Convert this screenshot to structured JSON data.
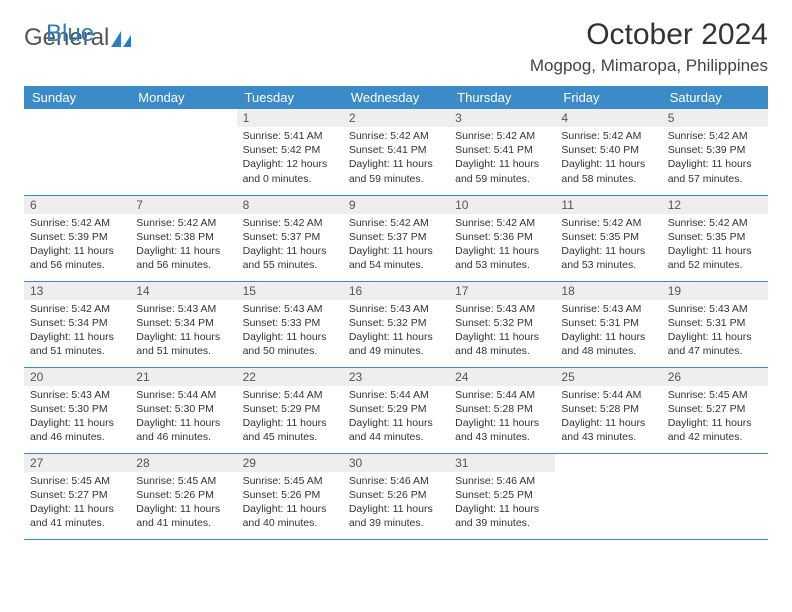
{
  "brand": {
    "part1": "General",
    "part2": "Blue"
  },
  "title": "October 2024",
  "location": "Mogpog, Mimaropa, Philippines",
  "colors": {
    "header_bg": "#3b8bc9",
    "header_text": "#ffffff",
    "daynum_bg": "#eeeeee",
    "border": "#3b8bc9",
    "brand_gray": "#555555",
    "brand_blue": "#2f7bbf"
  },
  "weekdays": [
    "Sunday",
    "Monday",
    "Tuesday",
    "Wednesday",
    "Thursday",
    "Friday",
    "Saturday"
  ],
  "weeks": [
    [
      null,
      null,
      {
        "num": "1",
        "sunrise": "5:41 AM",
        "sunset": "5:42 PM",
        "daylight": "12 hours and 0 minutes."
      },
      {
        "num": "2",
        "sunrise": "5:42 AM",
        "sunset": "5:41 PM",
        "daylight": "11 hours and 59 minutes."
      },
      {
        "num": "3",
        "sunrise": "5:42 AM",
        "sunset": "5:41 PM",
        "daylight": "11 hours and 59 minutes."
      },
      {
        "num": "4",
        "sunrise": "5:42 AM",
        "sunset": "5:40 PM",
        "daylight": "11 hours and 58 minutes."
      },
      {
        "num": "5",
        "sunrise": "5:42 AM",
        "sunset": "5:39 PM",
        "daylight": "11 hours and 57 minutes."
      }
    ],
    [
      {
        "num": "6",
        "sunrise": "5:42 AM",
        "sunset": "5:39 PM",
        "daylight": "11 hours and 56 minutes."
      },
      {
        "num": "7",
        "sunrise": "5:42 AM",
        "sunset": "5:38 PM",
        "daylight": "11 hours and 56 minutes."
      },
      {
        "num": "8",
        "sunrise": "5:42 AM",
        "sunset": "5:37 PM",
        "daylight": "11 hours and 55 minutes."
      },
      {
        "num": "9",
        "sunrise": "5:42 AM",
        "sunset": "5:37 PM",
        "daylight": "11 hours and 54 minutes."
      },
      {
        "num": "10",
        "sunrise": "5:42 AM",
        "sunset": "5:36 PM",
        "daylight": "11 hours and 53 minutes."
      },
      {
        "num": "11",
        "sunrise": "5:42 AM",
        "sunset": "5:35 PM",
        "daylight": "11 hours and 53 minutes."
      },
      {
        "num": "12",
        "sunrise": "5:42 AM",
        "sunset": "5:35 PM",
        "daylight": "11 hours and 52 minutes."
      }
    ],
    [
      {
        "num": "13",
        "sunrise": "5:42 AM",
        "sunset": "5:34 PM",
        "daylight": "11 hours and 51 minutes."
      },
      {
        "num": "14",
        "sunrise": "5:43 AM",
        "sunset": "5:34 PM",
        "daylight": "11 hours and 51 minutes."
      },
      {
        "num": "15",
        "sunrise": "5:43 AM",
        "sunset": "5:33 PM",
        "daylight": "11 hours and 50 minutes."
      },
      {
        "num": "16",
        "sunrise": "5:43 AM",
        "sunset": "5:32 PM",
        "daylight": "11 hours and 49 minutes."
      },
      {
        "num": "17",
        "sunrise": "5:43 AM",
        "sunset": "5:32 PM",
        "daylight": "11 hours and 48 minutes."
      },
      {
        "num": "18",
        "sunrise": "5:43 AM",
        "sunset": "5:31 PM",
        "daylight": "11 hours and 48 minutes."
      },
      {
        "num": "19",
        "sunrise": "5:43 AM",
        "sunset": "5:31 PM",
        "daylight": "11 hours and 47 minutes."
      }
    ],
    [
      {
        "num": "20",
        "sunrise": "5:43 AM",
        "sunset": "5:30 PM",
        "daylight": "11 hours and 46 minutes."
      },
      {
        "num": "21",
        "sunrise": "5:44 AM",
        "sunset": "5:30 PM",
        "daylight": "11 hours and 46 minutes."
      },
      {
        "num": "22",
        "sunrise": "5:44 AM",
        "sunset": "5:29 PM",
        "daylight": "11 hours and 45 minutes."
      },
      {
        "num": "23",
        "sunrise": "5:44 AM",
        "sunset": "5:29 PM",
        "daylight": "11 hours and 44 minutes."
      },
      {
        "num": "24",
        "sunrise": "5:44 AM",
        "sunset": "5:28 PM",
        "daylight": "11 hours and 43 minutes."
      },
      {
        "num": "25",
        "sunrise": "5:44 AM",
        "sunset": "5:28 PM",
        "daylight": "11 hours and 43 minutes."
      },
      {
        "num": "26",
        "sunrise": "5:45 AM",
        "sunset": "5:27 PM",
        "daylight": "11 hours and 42 minutes."
      }
    ],
    [
      {
        "num": "27",
        "sunrise": "5:45 AM",
        "sunset": "5:27 PM",
        "daylight": "11 hours and 41 minutes."
      },
      {
        "num": "28",
        "sunrise": "5:45 AM",
        "sunset": "5:26 PM",
        "daylight": "11 hours and 41 minutes."
      },
      {
        "num": "29",
        "sunrise": "5:45 AM",
        "sunset": "5:26 PM",
        "daylight": "11 hours and 40 minutes."
      },
      {
        "num": "30",
        "sunrise": "5:46 AM",
        "sunset": "5:26 PM",
        "daylight": "11 hours and 39 minutes."
      },
      {
        "num": "31",
        "sunrise": "5:46 AM",
        "sunset": "5:25 PM",
        "daylight": "11 hours and 39 minutes."
      },
      null,
      null
    ]
  ],
  "labels": {
    "sunrise_prefix": "Sunrise: ",
    "sunset_prefix": "Sunset: ",
    "daylight_prefix": "Daylight: "
  }
}
